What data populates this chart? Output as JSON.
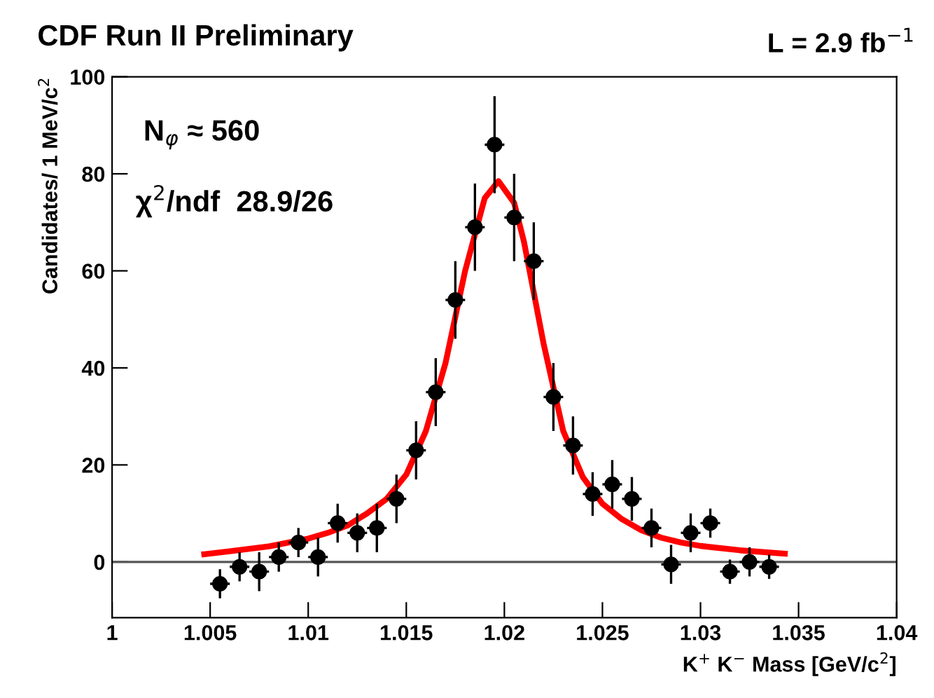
{
  "chart_data": {
    "type": "scatter",
    "title": "CDF Run II Preliminary",
    "subtitle": "L = 2.9 fb$^{−1}$",
    "xlabel": "K$^{+}$ K$^{−}$ Mass [GeV/c$^{2}$]",
    "ylabel": "Candidates/ 1 MeV/c$^{2}$",
    "annotations": [
      "N$_{φ}$ ≈ 560",
      "χ$^{2}$/ndf  28.9/26"
    ],
    "series": [
      {
        "color": "#000000",
        "marker": "circle",
        "x": [
          1.0055,
          1.0065,
          1.0075,
          1.0085,
          1.0095,
          1.0105,
          1.0115,
          1.0125,
          1.0135,
          1.0145,
          1.0155,
          1.0165,
          1.0175,
          1.0185,
          1.0195,
          1.0205,
          1.0215,
          1.0225,
          1.0235,
          1.0245,
          1.0255,
          1.0265,
          1.0275,
          1.0285,
          1.0295,
          1.0305,
          1.0315,
          1.0325,
          1.0335
        ],
        "values": [
          -4.5,
          -1,
          -2,
          1,
          4,
          1,
          8,
          6,
          7,
          13,
          23,
          35,
          54,
          69,
          86,
          71,
          62,
          34,
          24,
          14,
          16,
          13,
          7,
          -0.5,
          6,
          8,
          -2,
          0,
          -1
        ],
        "errors": [
          3,
          3,
          4,
          3,
          3,
          4,
          4,
          4,
          5,
          5,
          6,
          7,
          8,
          9,
          10,
          9,
          8,
          7,
          6,
          4.5,
          5,
          4.5,
          4,
          4,
          4,
          3,
          2.5,
          3,
          2.5
        ],
        "xerrors": [
          0.0005,
          0.0005,
          0.0005,
          0.0005,
          0.0005,
          0.0005,
          0.0005,
          0.0005,
          0.0005,
          0.0005,
          0.0005,
          0.0005,
          0.0005,
          0.0005,
          0.0005,
          0.0005,
          0.0005,
          0.0005,
          0.0005,
          0.0005,
          0.0005,
          0.0005,
          0.0005,
          0.0005,
          0.0005,
          0.0005,
          0.0005,
          0.0005,
          0.0005
        ]
      },
      {
        "type": "line",
        "color": "#ff0000",
        "line_style": "solid",
        "x": [
          1.0047,
          1.006,
          1.008,
          1.01,
          1.011,
          1.012,
          1.013,
          1.014,
          1.015,
          1.016,
          1.017,
          1.018,
          1.019,
          1.0197,
          1.0205,
          1.021,
          1.022,
          1.023,
          1.024,
          1.025,
          1.026,
          1.027,
          1.028,
          1.029,
          1.03,
          1.032,
          1.0343
        ],
        "values": [
          1.6,
          2.2,
          3.2,
          4.8,
          6,
          7.5,
          10,
          13,
          18,
          27,
          41,
          60,
          75,
          78.5,
          74,
          66,
          45,
          27,
          17.5,
          12,
          8.8,
          6.5,
          5,
          4,
          3.3,
          2.4,
          1.7
        ]
      }
    ],
    "ref_lines": [
      {
        "axis": "y",
        "value": 0,
        "color": "#555555",
        "line_style": "solid"
      }
    ],
    "xlim": [
      1,
      1.04
    ],
    "xticks": [
      1,
      1.005,
      1.01,
      1.015,
      1.02,
      1.025,
      1.03,
      1.035,
      1.04
    ],
    "ylim": [
      -11.5,
      100
    ],
    "yticks": [
      0,
      20,
      40,
      60,
      80,
      100
    ],
    "grid": false,
    "legend": false
  }
}
